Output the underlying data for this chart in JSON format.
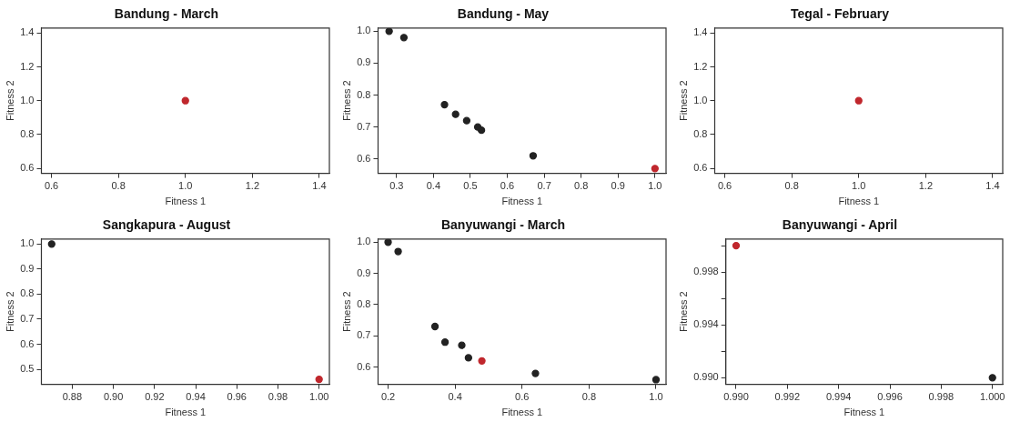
{
  "chart_data": [
    {
      "type": "scatter",
      "title": "Bandung - March",
      "xlabel": "Fitness 1",
      "ylabel": "Fitness 2",
      "xlim": [
        0.57,
        1.43
      ],
      "xticks": [
        0.6,
        0.8,
        {
          "value": 1,
          "label": "1.0"
        },
        1.2,
        1.4
      ],
      "ylim": [
        0.57,
        1.43
      ],
      "yticks": [
        0.6,
        0.8,
        {
          "value": 1,
          "label": "1.0"
        },
        1.2,
        1.4
      ],
      "marker": "circle",
      "grid": false,
      "series": [
        {
          "color": "#c0272d",
          "x": [
            1
          ],
          "values": [
            1
          ]
        }
      ]
    },
    {
      "type": "scatter",
      "title": "Bandung - May",
      "xlabel": "Fitness 1",
      "ylabel": "Fitness 2",
      "xlim": [
        0.25,
        1.03
      ],
      "xticks": [
        0.3,
        0.4,
        0.5,
        0.6,
        0.7,
        0.8,
        0.9,
        {
          "value": 1,
          "label": "1.0"
        }
      ],
      "ylim": [
        0.555,
        1.01
      ],
      "yticks": [
        0.6,
        0.7,
        0.8,
        0.9,
        {
          "value": 1,
          "label": "1.0"
        }
      ],
      "marker": "circle",
      "grid": false,
      "series": [
        {
          "color": "#222222",
          "x": [
            0.28,
            0.32,
            0.43,
            0.46,
            0.49,
            0.52,
            0.53,
            0.67
          ],
          "values": [
            1.0,
            0.98,
            0.77,
            0.74,
            0.72,
            0.7,
            0.69,
            0.61
          ]
        },
        {
          "color": "#c0272d",
          "x": [
            1
          ],
          "values": [
            0.57
          ]
        }
      ]
    },
    {
      "type": "scatter",
      "title": "Tegal - February",
      "xlabel": "Fitness 1",
      "ylabel": "Fitness 2",
      "xlim": [
        0.57,
        1.43
      ],
      "xticks": [
        0.6,
        0.8,
        {
          "value": 1,
          "label": "1.0"
        },
        1.2,
        1.4
      ],
      "ylim": [
        0.57,
        1.43
      ],
      "yticks": [
        0.6,
        0.8,
        {
          "value": 1,
          "label": "1.0"
        },
        1.2,
        1.4
      ],
      "marker": "circle",
      "grid": false,
      "series": [
        {
          "color": "#c0272d",
          "x": [
            1
          ],
          "values": [
            1
          ]
        }
      ]
    },
    {
      "type": "scatter",
      "title": "Sangkapura - August",
      "xlabel": "Fitness 1",
      "ylabel": "Fitness 2",
      "xlim": [
        0.865,
        1.005
      ],
      "xticks": [
        0.88,
        {
          "value": 0.9,
          "label": "0.90"
        },
        0.92,
        0.94,
        0.96,
        0.98,
        {
          "value": 1,
          "label": "1.00"
        }
      ],
      "ylim": [
        0.44,
        1.02
      ],
      "yticks": [
        0.5,
        0.6,
        0.7,
        0.8,
        0.9,
        {
          "value": 1,
          "label": "1.0"
        }
      ],
      "marker": "circle",
      "grid": false,
      "series": [
        {
          "color": "#222222",
          "x": [
            0.87
          ],
          "values": [
            1.0
          ]
        },
        {
          "color": "#c0272d",
          "x": [
            1
          ],
          "values": [
            0.46
          ]
        }
      ]
    },
    {
      "type": "scatter",
      "title": "Banyuwangi - March",
      "xlabel": "Fitness 1",
      "ylabel": "Fitness 2",
      "xlim": [
        0.17,
        1.03
      ],
      "xticks": [
        0.2,
        0.4,
        0.6,
        0.8,
        {
          "value": 1,
          "label": "1.0"
        }
      ],
      "ylim": [
        0.545,
        1.01
      ],
      "yticks": [
        0.6,
        0.7,
        0.8,
        0.9,
        {
          "value": 1,
          "label": "1.0"
        }
      ],
      "marker": "circle",
      "grid": false,
      "series": [
        {
          "color": "#222222",
          "x": [
            0.2,
            0.23,
            0.34,
            0.37,
            0.42,
            0.44,
            0.64,
            1.0
          ],
          "values": [
            1.0,
            0.97,
            0.73,
            0.68,
            0.67,
            0.63,
            0.58,
            0.56
          ]
        },
        {
          "color": "#c0272d",
          "x": [
            0.48
          ],
          "values": [
            0.62
          ]
        }
      ]
    },
    {
      "type": "scatter",
      "title": "Banyuwangi - April",
      "xlabel": "Fitness 1",
      "ylabel": "Fitness 2",
      "xlim": [
        0.9896,
        1.0004
      ],
      "xticks": [
        {
          "value": 0.99,
          "label": "0.990"
        },
        0.992,
        0.994,
        0.996,
        0.998,
        {
          "value": 1,
          "label": "1.000"
        }
      ],
      "ylim": [
        0.9895,
        1.0005
      ],
      "yticks": [
        {
          "value": 0.99,
          "label": "0.990"
        },
        {
          "value": 0.992,
          "label": null
        },
        0.994,
        {
          "value": 0.996,
          "label": null
        },
        0.998,
        {
          "value": 1,
          "label": null
        }
      ],
      "marker": "circle",
      "grid": false,
      "series": [
        {
          "color": "#222222",
          "x": [
            1.0
          ],
          "values": [
            0.99
          ]
        },
        {
          "color": "#c0272d",
          "x": [
            0.99
          ],
          "values": [
            1.0
          ]
        }
      ]
    }
  ]
}
